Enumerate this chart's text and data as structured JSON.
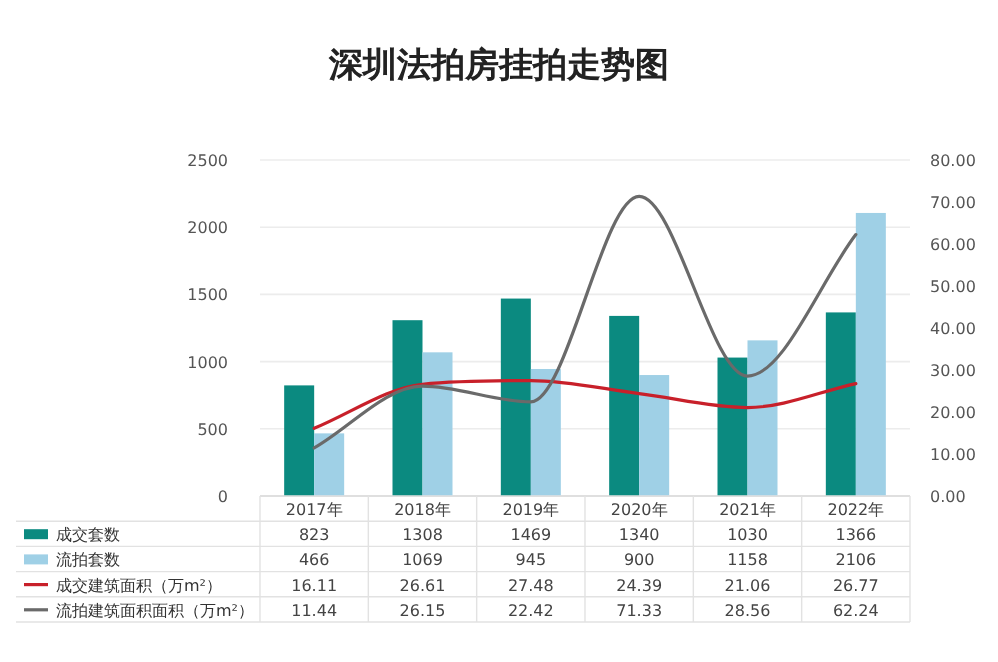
{
  "chart_data": {
    "type": "bar",
    "title": "深圳法拍房挂拍走势图",
    "categories": [
      "2017年",
      "2018年",
      "2019年",
      "2020年",
      "2021年",
      "2022年"
    ],
    "series": [
      {
        "name": "成交套数",
        "color": "#0b8a80",
        "values": [
          823,
          1308,
          1469,
          1340,
          1030,
          1366
        ]
      },
      {
        "name": "流拍套数",
        "color": "#9fd0e6",
        "values": [
          466,
          1069,
          945,
          900,
          1158,
          2106
        ]
      },
      {
        "name": "成交建筑面积（万m²）",
        "type": "line",
        "axis": "y2",
        "color": "#c8202a",
        "values": [
          16.11,
          26.61,
          27.48,
          24.39,
          21.06,
          26.77
        ]
      },
      {
        "name": "流拍建筑面积面积（万m²）",
        "type": "line",
        "axis": "y2",
        "color": "#6a6a6a",
        "values": [
          11.44,
          26.15,
          22.42,
          71.33,
          28.56,
          62.24
        ]
      }
    ],
    "ylim": [
      0,
      2500
    ],
    "yticks": [
      0,
      500,
      1000,
      1500,
      2000,
      2500
    ],
    "y2lim": [
      0,
      80
    ],
    "y2ticks": [
      {
        "value": 0,
        "label": "0.00"
      },
      {
        "value": 10,
        "label": "10.00"
      },
      {
        "value": 20,
        "label": "20.00"
      },
      {
        "value": 30,
        "label": "30.00"
      },
      {
        "value": 40,
        "label": "40.00"
      },
      {
        "value": 50,
        "label": "50.00"
      },
      {
        "value": 60,
        "label": "60.00"
      },
      {
        "value": 70,
        "label": "70.00"
      },
      {
        "value": 80,
        "label": "80.00"
      }
    ],
    "grid": "y",
    "legend": "bottom",
    "data_labels": true
  }
}
